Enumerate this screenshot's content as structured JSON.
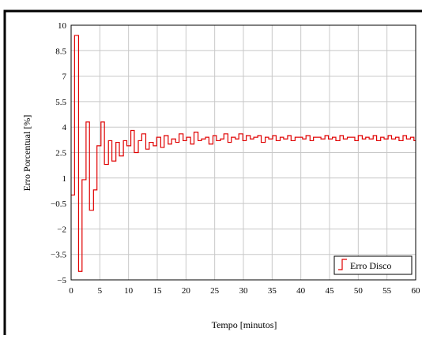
{
  "chart_data": {
    "type": "line",
    "title": "",
    "xlabel": "Tempo [minutos]",
    "ylabel": "Erro Porcentual [%]",
    "xlim": [
      0,
      60
    ],
    "ylim": [
      -5,
      10
    ],
    "xticks": [
      0,
      5,
      10,
      15,
      20,
      25,
      30,
      35,
      40,
      45,
      50,
      55,
      60
    ],
    "xtick_labels": [
      "0",
      "5",
      "10",
      "15",
      "20",
      "25",
      "30",
      "35",
      "40",
      "45",
      "50",
      "55",
      "60"
    ],
    "yticks": [
      10,
      8.5,
      7,
      5.5,
      4,
      2.5,
      1,
      -0.5,
      -2,
      -3.5,
      -5
    ],
    "ytick_labels": [
      "10",
      "8.5",
      "7",
      "5.5",
      "4",
      "2.5",
      "1",
      "−0.5",
      "−2",
      "−3.5",
      "−5"
    ],
    "grid": true,
    "legend_position": "bottom-right",
    "line_style": "step",
    "series": [
      {
        "name": "Erro Disco",
        "color": "#e00000",
        "x": [
          0,
          0.6,
          1.3,
          1.9,
          2.6,
          3.2,
          3.9,
          4.5,
          5.2,
          5.8,
          6.5,
          7.1,
          7.8,
          8.4,
          9.1,
          9.7,
          10.4,
          11.0,
          11.7,
          12.3,
          13.0,
          13.6,
          14.3,
          14.9,
          15.6,
          16.2,
          16.9,
          17.5,
          18.2,
          18.8,
          19.5,
          20.1,
          20.8,
          21.4,
          22.1,
          22.7,
          23.4,
          24.0,
          24.7,
          25.3,
          26.0,
          26.6,
          27.3,
          27.9,
          28.6,
          29.2,
          29.9,
          30.5,
          31.2,
          31.8,
          32.5,
          33.1,
          33.8,
          34.4,
          35.1,
          35.7,
          36.4,
          37.0,
          37.7,
          38.3,
          39.0,
          39.6,
          40.3,
          40.9,
          41.6,
          42.2,
          42.9,
          43.5,
          44.2,
          44.8,
          45.5,
          46.1,
          46.8,
          47.4,
          48.1,
          48.7,
          49.4,
          50.0,
          50.7,
          51.3,
          51.9,
          52.6,
          53.2,
          53.9,
          54.5,
          55.2,
          55.8,
          56.5,
          57.1,
          57.8,
          58.4,
          59.1,
          59.7,
          60
        ],
        "y": [
          0.0,
          9.4,
          -4.5,
          0.9,
          4.3,
          -0.9,
          0.3,
          2.9,
          4.3,
          1.8,
          3.2,
          2.0,
          3.1,
          2.3,
          3.2,
          2.9,
          3.8,
          2.5,
          3.2,
          3.6,
          2.7,
          3.1,
          2.9,
          3.4,
          2.8,
          3.5,
          3.0,
          3.3,
          3.1,
          3.6,
          3.2,
          3.4,
          3.0,
          3.7,
          3.2,
          3.3,
          3.4,
          3.0,
          3.5,
          3.2,
          3.3,
          3.6,
          3.1,
          3.4,
          3.3,
          3.6,
          3.2,
          3.5,
          3.3,
          3.4,
          3.5,
          3.1,
          3.4,
          3.3,
          3.5,
          3.2,
          3.4,
          3.3,
          3.5,
          3.2,
          3.4,
          3.4,
          3.3,
          3.5,
          3.2,
          3.4,
          3.4,
          3.3,
          3.5,
          3.3,
          3.4,
          3.2,
          3.5,
          3.3,
          3.4,
          3.4,
          3.2,
          3.5,
          3.3,
          3.4,
          3.3,
          3.5,
          3.2,
          3.4,
          3.3,
          3.5,
          3.3,
          3.4,
          3.2,
          3.5,
          3.3,
          3.4,
          3.2,
          3.2
        ]
      }
    ]
  }
}
